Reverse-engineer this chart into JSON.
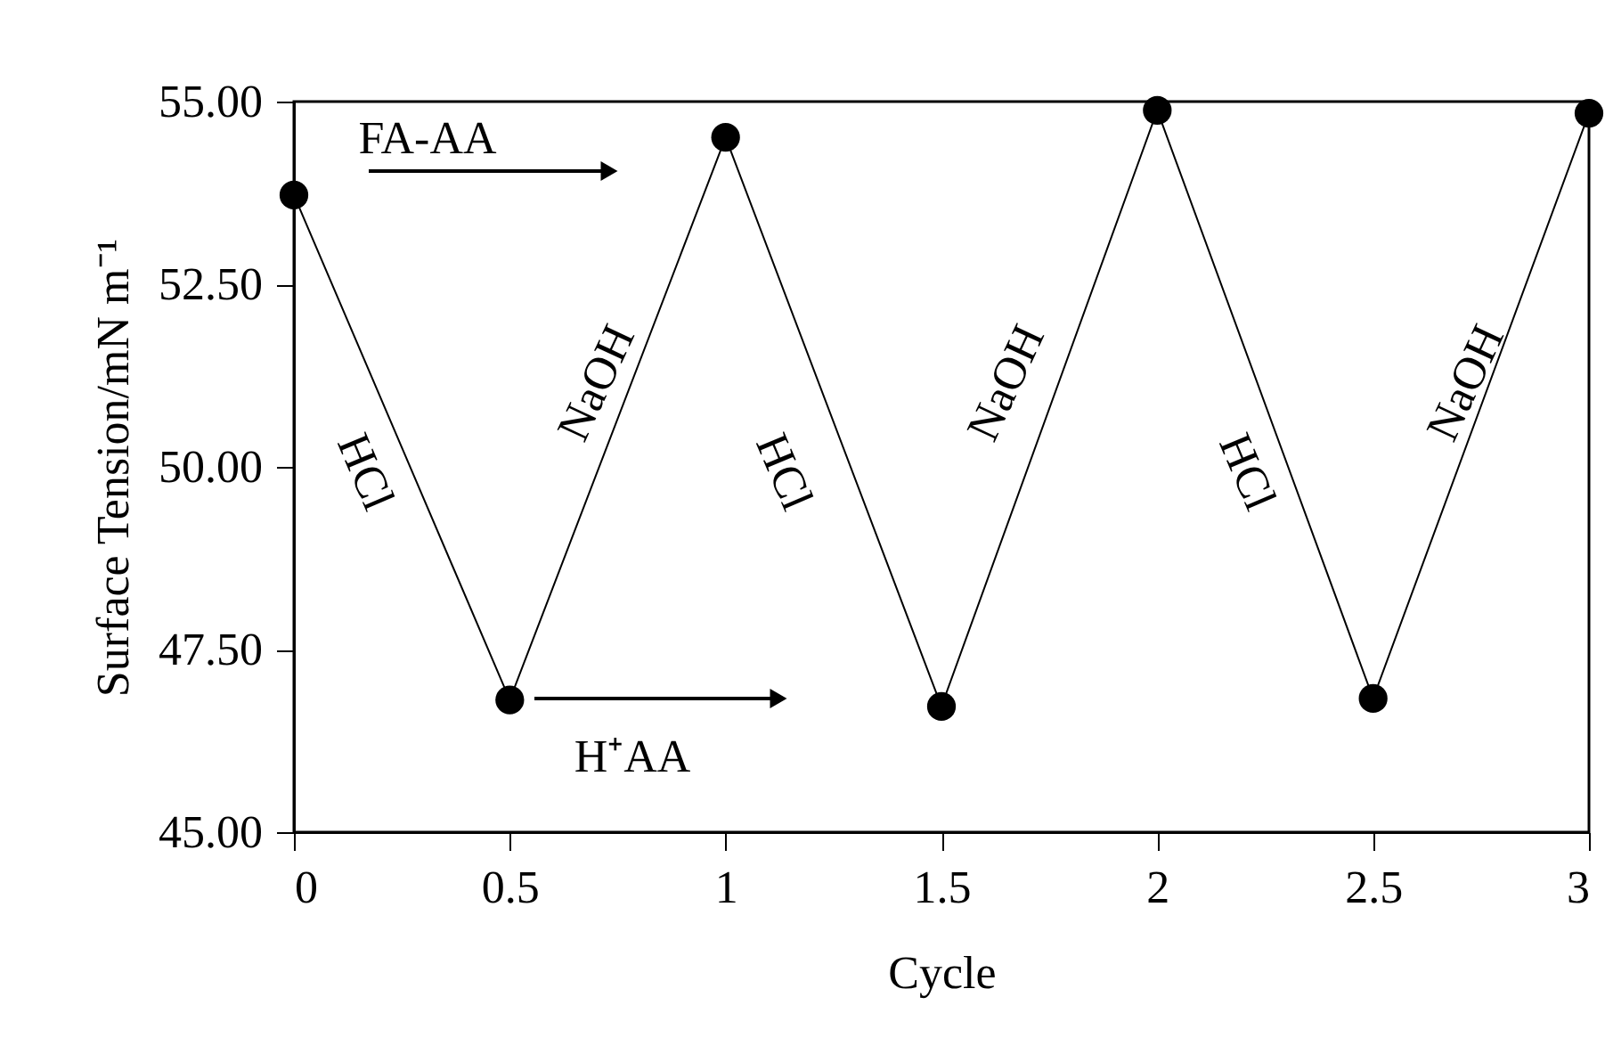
{
  "chart_data": {
    "type": "line",
    "xlabel": "Cycle",
    "ylabel": "Surface Tension/mN m⁻¹",
    "x": [
      0,
      0.5,
      1,
      1.5,
      2,
      2.5,
      3
    ],
    "series": [
      {
        "color": "#000000",
        "values": [
          53.72,
          46.81,
          54.51,
          46.72,
          54.88,
          46.83,
          54.84
        ]
      }
    ],
    "xlim": [
      0,
      3
    ],
    "xticks": [
      0,
      0.5,
      1,
      1.5,
      2,
      2.5,
      3
    ],
    "ylim": [
      45,
      55
    ],
    "yticks": [
      {
        "value": 45,
        "label": "45.00"
      },
      {
        "value": 47.5,
        "label": "47.50"
      },
      {
        "value": 50,
        "label": "50.00"
      },
      {
        "value": 52.5,
        "label": "52.50"
      },
      {
        "value": 55,
        "label": "55.00"
      }
    ],
    "marker": "circle",
    "line_style": "solid",
    "grid": false,
    "annotations": [
      "FA-AA",
      "H⁺AA",
      "HCl",
      "HCl",
      "HCl",
      "NaOH",
      "NaOH",
      "NaOH"
    ]
  }
}
